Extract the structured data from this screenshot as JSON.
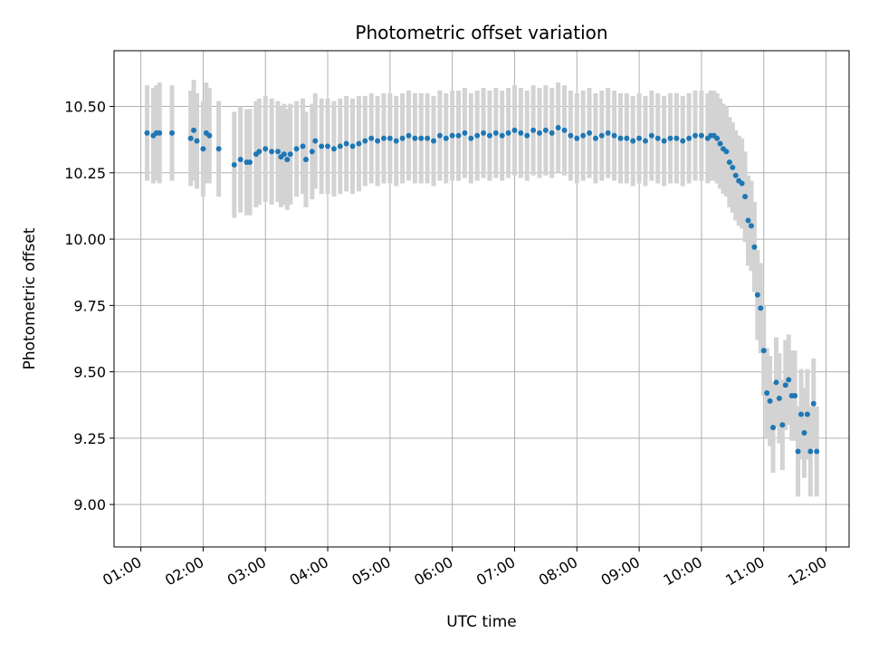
{
  "chart_data": {
    "type": "scatter",
    "title": "Photometric offset variation",
    "xlabel": "UTC time",
    "ylabel": "Photometric offset",
    "x_tick_labels": [
      "01:00",
      "02:00",
      "03:00",
      "04:00",
      "05:00",
      "06:00",
      "07:00",
      "08:00",
      "09:00",
      "10:00",
      "11:00",
      "12:00"
    ],
    "y_tick_labels": [
      "9.00",
      "9.25",
      "9.50",
      "9.75",
      "10.00",
      "10.25",
      "10.50"
    ],
    "x_unit": "hours UTC",
    "xlim": [
      0.57,
      12.37
    ],
    "ylim": [
      8.84,
      10.71
    ],
    "grid": true,
    "errorbar_color": "#d3d3d3",
    "point_color": "#1f77b4",
    "series": [
      {
        "x": [
          1.1,
          1.2,
          1.25,
          1.3,
          1.5,
          1.8,
          1.85,
          1.9,
          2.0,
          2.05,
          2.1,
          2.25,
          2.5,
          2.6,
          2.7,
          2.75,
          2.85,
          2.9,
          3.0,
          3.1,
          3.2,
          3.25,
          3.3,
          3.35,
          3.4,
          3.5,
          3.6,
          3.65,
          3.75,
          3.8,
          3.9,
          4.0,
          4.1,
          4.2,
          4.3,
          4.4,
          4.5,
          4.6,
          4.7,
          4.8,
          4.9,
          5.0,
          5.1,
          5.2,
          5.3,
          5.4,
          5.5,
          5.6,
          5.7,
          5.8,
          5.9,
          6.0,
          6.1,
          6.2,
          6.3,
          6.4,
          6.5,
          6.6,
          6.7,
          6.8,
          6.9,
          7.0,
          7.1,
          7.2,
          7.3,
          7.4,
          7.5,
          7.6,
          7.7,
          7.8,
          7.9,
          8.0,
          8.1,
          8.2,
          8.3,
          8.4,
          8.5,
          8.6,
          8.7,
          8.8,
          8.9,
          9.0,
          9.1,
          9.2,
          9.3,
          9.4,
          9.5,
          9.6,
          9.7,
          9.8,
          9.9,
          10.0,
          10.1,
          10.15,
          10.2,
          10.25,
          10.3,
          10.35,
          10.4,
          10.45,
          10.5,
          10.55,
          10.6,
          10.65,
          10.7,
          10.75,
          10.8,
          10.85,
          10.9,
          10.95,
          11.0,
          11.05,
          11.1,
          11.15,
          11.2,
          11.25,
          11.3,
          11.35,
          11.4,
          11.45,
          11.5,
          11.55,
          11.6,
          11.65,
          11.7,
          11.75,
          11.8,
          11.85
        ],
        "y": [
          10.4,
          10.39,
          10.4,
          10.4,
          10.4,
          10.38,
          10.41,
          10.37,
          10.34,
          10.4,
          10.39,
          10.34,
          10.28,
          10.3,
          10.29,
          10.29,
          10.32,
          10.33,
          10.34,
          10.33,
          10.33,
          10.31,
          10.32,
          10.3,
          10.32,
          10.34,
          10.35,
          10.3,
          10.33,
          10.37,
          10.35,
          10.35,
          10.34,
          10.35,
          10.36,
          10.35,
          10.36,
          10.37,
          10.38,
          10.37,
          10.38,
          10.38,
          10.37,
          10.38,
          10.39,
          10.38,
          10.38,
          10.38,
          10.37,
          10.39,
          10.38,
          10.39,
          10.39,
          10.4,
          10.38,
          10.39,
          10.4,
          10.39,
          10.4,
          10.39,
          10.4,
          10.41,
          10.4,
          10.39,
          10.41,
          10.4,
          10.41,
          10.4,
          10.42,
          10.41,
          10.39,
          10.38,
          10.39,
          10.4,
          10.38,
          10.39,
          10.4,
          10.39,
          10.38,
          10.38,
          10.37,
          10.38,
          10.37,
          10.39,
          10.38,
          10.37,
          10.38,
          10.38,
          10.37,
          10.38,
          10.39,
          10.39,
          10.38,
          10.39,
          10.39,
          10.38,
          10.36,
          10.34,
          10.33,
          10.29,
          10.27,
          10.24,
          10.22,
          10.21,
          10.16,
          10.07,
          10.05,
          9.97,
          9.79,
          9.74,
          9.58,
          9.42,
          9.39,
          9.29,
          9.46,
          9.4,
          9.3,
          9.45,
          9.47,
          9.41,
          9.41,
          9.2,
          9.34,
          9.27,
          9.34,
          9.2,
          9.38,
          9.2
        ],
        "err": [
          0.18,
          0.18,
          0.18,
          0.19,
          0.18,
          0.18,
          0.19,
          0.18,
          0.18,
          0.19,
          0.18,
          0.18,
          0.2,
          0.2,
          0.2,
          0.2,
          0.2,
          0.2,
          0.2,
          0.2,
          0.19,
          0.19,
          0.19,
          0.19,
          0.19,
          0.18,
          0.18,
          0.18,
          0.18,
          0.18,
          0.18,
          0.18,
          0.18,
          0.18,
          0.18,
          0.18,
          0.18,
          0.17,
          0.17,
          0.17,
          0.17,
          0.17,
          0.17,
          0.17,
          0.17,
          0.17,
          0.17,
          0.17,
          0.17,
          0.17,
          0.17,
          0.17,
          0.17,
          0.17,
          0.17,
          0.17,
          0.17,
          0.17,
          0.17,
          0.17,
          0.17,
          0.17,
          0.17,
          0.17,
          0.17,
          0.17,
          0.17,
          0.17,
          0.17,
          0.17,
          0.17,
          0.17,
          0.17,
          0.17,
          0.17,
          0.17,
          0.17,
          0.17,
          0.17,
          0.17,
          0.17,
          0.17,
          0.17,
          0.17,
          0.17,
          0.17,
          0.17,
          0.17,
          0.17,
          0.17,
          0.17,
          0.17,
          0.17,
          0.17,
          0.17,
          0.17,
          0.17,
          0.17,
          0.17,
          0.17,
          0.17,
          0.17,
          0.17,
          0.17,
          0.17,
          0.17,
          0.17,
          0.17,
          0.17,
          0.17,
          0.17,
          0.17,
          0.17,
          0.17,
          0.17,
          0.17,
          0.17,
          0.17,
          0.17,
          0.17,
          0.17,
          0.17,
          0.17,
          0.17,
          0.17,
          0.17,
          0.17,
          0.17
        ]
      }
    ]
  }
}
